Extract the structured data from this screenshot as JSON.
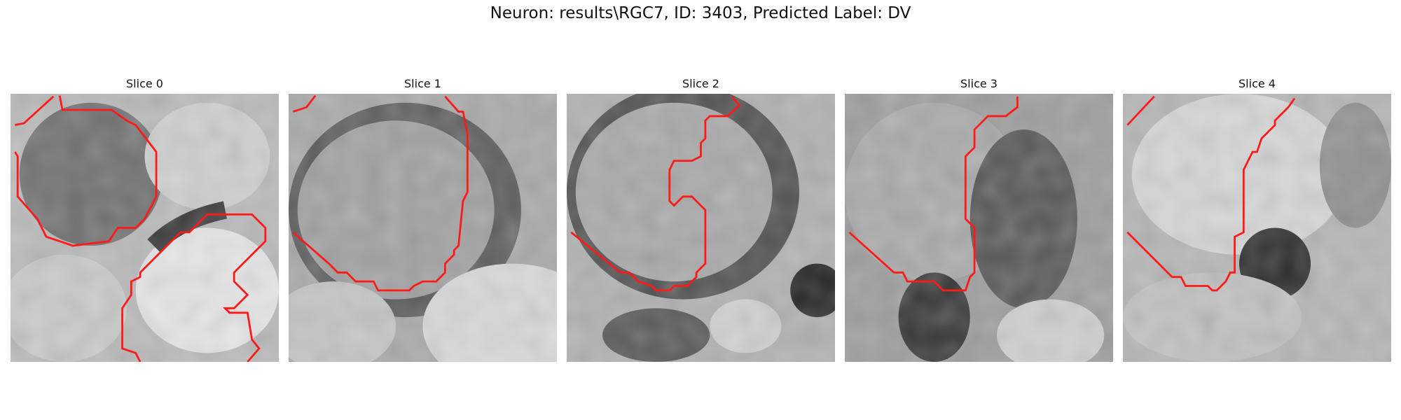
{
  "title": "Neuron: results\\RGC7, ID: 3403, Predicted Label: DV",
  "slices": [
    {
      "label": "Slice 0"
    },
    {
      "label": "Slice 1"
    },
    {
      "label": "Slice 2"
    },
    {
      "label": "Slice 3"
    },
    {
      "label": "Slice 4"
    }
  ],
  "colors": {
    "contour": "#ff1a1a"
  }
}
